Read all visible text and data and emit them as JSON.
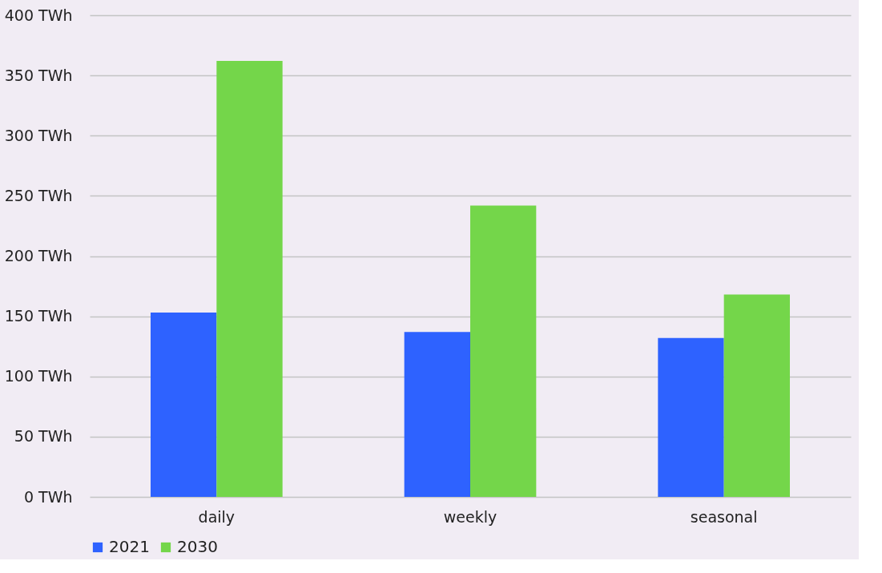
{
  "chart_data": {
    "type": "bar",
    "categories": [
      "daily",
      "weekly",
      "seasonal"
    ],
    "series": [
      {
        "name": "2021",
        "color": "#2e62ff",
        "values": [
          153,
          137,
          132
        ]
      },
      {
        "name": "2030",
        "color": "#74d64a",
        "values": [
          362,
          242,
          168
        ]
      }
    ],
    "ylim": [
      0,
      400
    ],
    "yticks": [
      {
        "value": 0,
        "label": "0 TWh"
      },
      {
        "value": 50,
        "label": "50 TWh"
      },
      {
        "value": 100,
        "label": "100 TWh"
      },
      {
        "value": 150,
        "label": "150 TWh"
      },
      {
        "value": 200,
        "label": "200 TWh"
      },
      {
        "value": 250,
        "label": "250 TWh"
      },
      {
        "value": 300,
        "label": "300 TWh"
      },
      {
        "value": 350,
        "label": "350 TWh"
      },
      {
        "value": 400,
        "label": "400 TWh"
      }
    ],
    "grid": "y",
    "legend": "bottom"
  }
}
